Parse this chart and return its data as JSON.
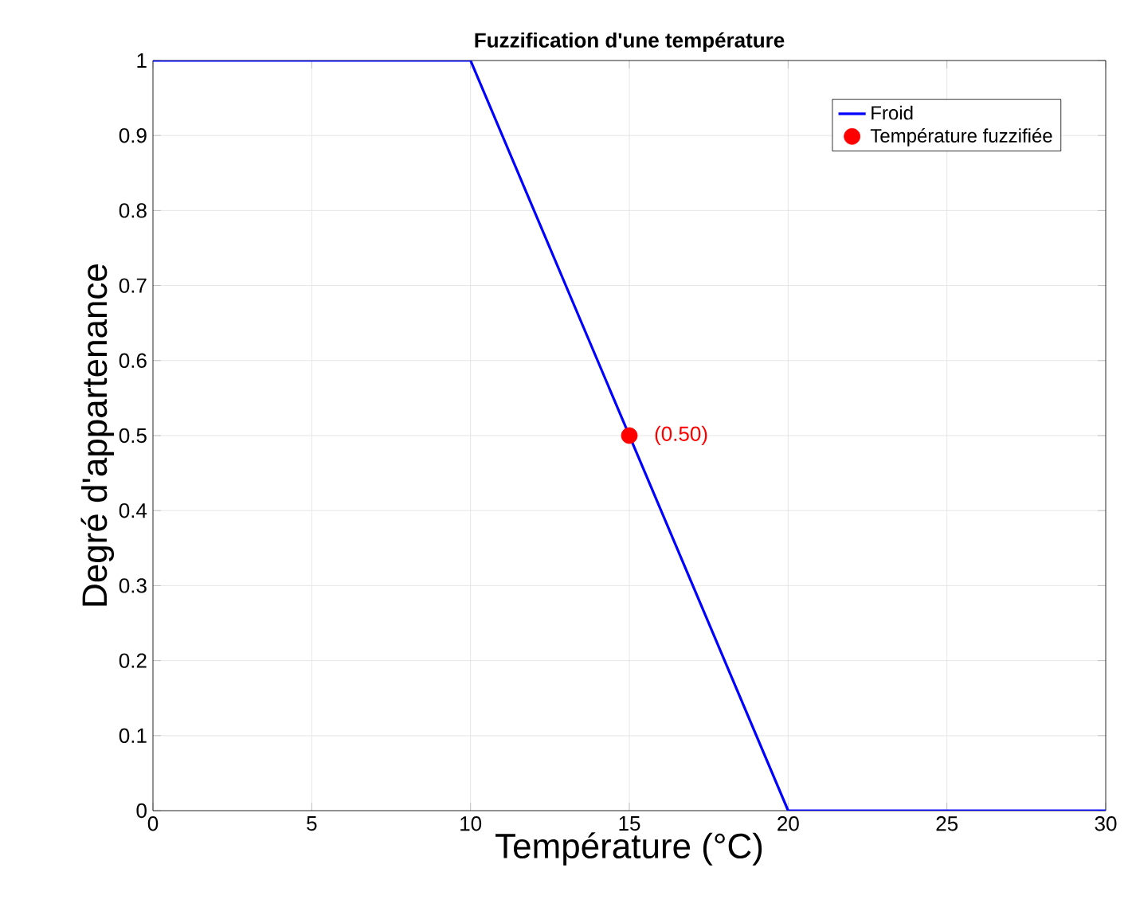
{
  "chart_data": {
    "type": "line",
    "title": "Fuzzification d'une température",
    "xlabel": "Température (°C)",
    "ylabel": "Degré d'appartenance",
    "series": [
      {
        "name": "Froid",
        "color": "#0000ff",
        "x": [
          0,
          10,
          20,
          30
        ],
        "values": [
          1,
          1,
          0,
          0
        ]
      },
      {
        "name": "Température fuzzifiée",
        "type": "scatter",
        "marker": "circle",
        "color": "#ff0000",
        "x": [
          15
        ],
        "values": [
          0.5
        ]
      }
    ],
    "annotations": [
      {
        "text": "(0.50)",
        "x": 15,
        "y": 0.5
      }
    ],
    "xlim": [
      0,
      30
    ],
    "ylim": [
      0,
      1
    ],
    "xticks": [
      0,
      5,
      10,
      15,
      20,
      25,
      30
    ],
    "yticks": [
      0,
      0.1,
      0.2,
      0.3,
      0.4,
      0.5,
      0.6,
      0.7,
      0.8,
      0.9,
      1
    ],
    "grid": true,
    "legend": "top right"
  }
}
